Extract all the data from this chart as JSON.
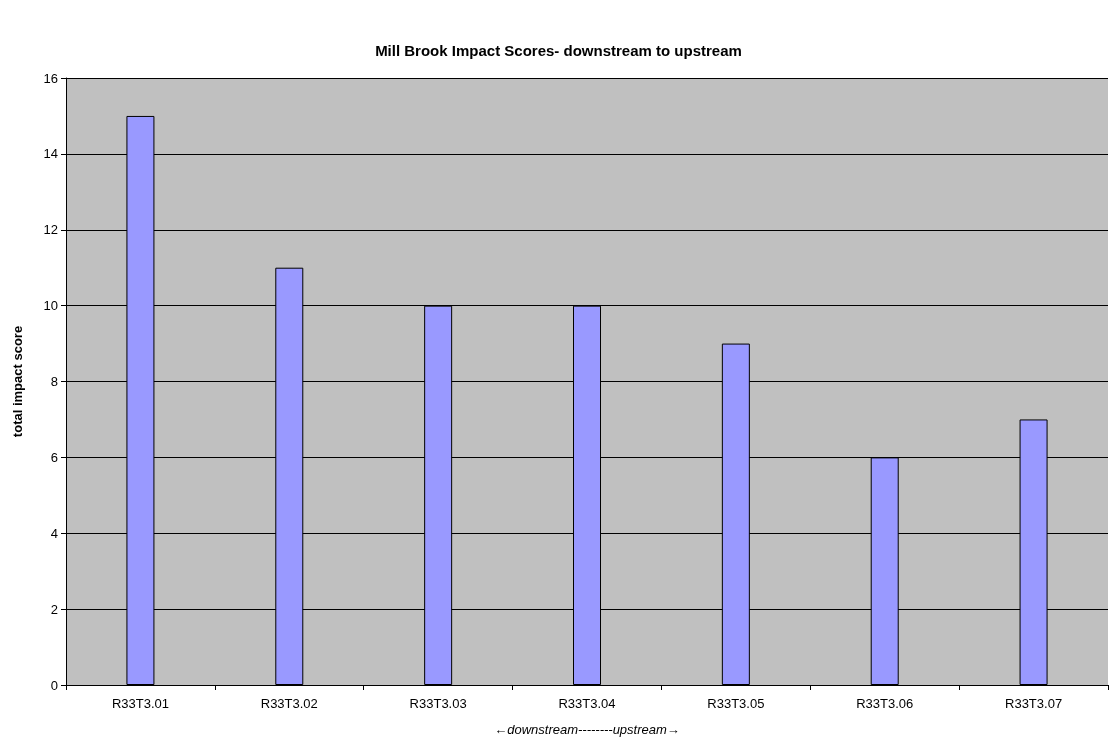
{
  "chart_data": {
    "type": "bar",
    "title": "Mill Brook Impact Scores- downstream to upstream",
    "xlabel": "←downstream--------upstream→",
    "ylabel": "total impact score",
    "categories": [
      "R33T3.01",
      "R33T3.02",
      "R33T3.03",
      "R33T3.04",
      "R33T3.05",
      "R33T3.06",
      "R33T3.07"
    ],
    "values": [
      15,
      11,
      10,
      10,
      9,
      6,
      7
    ],
    "color": "#9999ff",
    "ylim": [
      0,
      16
    ],
    "yticks": [
      0,
      2,
      4,
      6,
      8,
      10,
      12,
      14,
      16
    ],
    "grid": "y"
  }
}
